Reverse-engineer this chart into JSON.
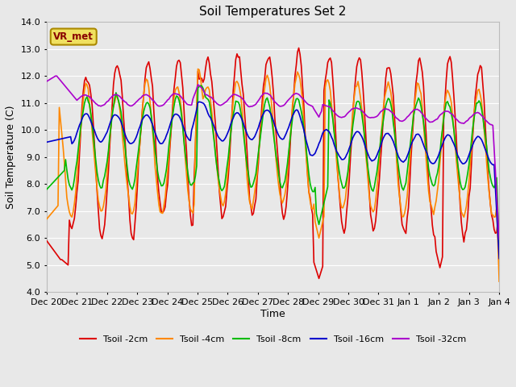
{
  "title": "Soil Temperatures Set 2",
  "xlabel": "Time",
  "ylabel": "Soil Temperature (C)",
  "ylim": [
    4.0,
    14.0
  ],
  "yticks": [
    4.0,
    5.0,
    6.0,
    7.0,
    8.0,
    9.0,
    10.0,
    11.0,
    12.0,
    13.0,
    14.0
  ],
  "date_labels": [
    "Dec 20",
    "Dec 21",
    "Dec 22",
    "Dec 23",
    "Dec 24",
    "Dec 25",
    "Dec 26",
    "Dec 27",
    "Dec 28",
    "Dec 29",
    "Dec 30",
    "Dec 31",
    "Jan 1",
    "Jan 2",
    "Jan 3",
    "Jan 4"
  ],
  "annotation_text": "VR_met",
  "legend_labels": [
    "Tsoil -2cm",
    "Tsoil -4cm",
    "Tsoil -8cm",
    "Tsoil -16cm",
    "Tsoil -32cm"
  ],
  "colors": [
    "#dd0000",
    "#ff8800",
    "#00bb00",
    "#0000cc",
    "#aa00cc"
  ],
  "bg_color": "#e8e8e8",
  "grid_color": "#ffffff",
  "n_points": 360,
  "title_fontsize": 11,
  "axis_fontsize": 9,
  "tick_fontsize": 8
}
